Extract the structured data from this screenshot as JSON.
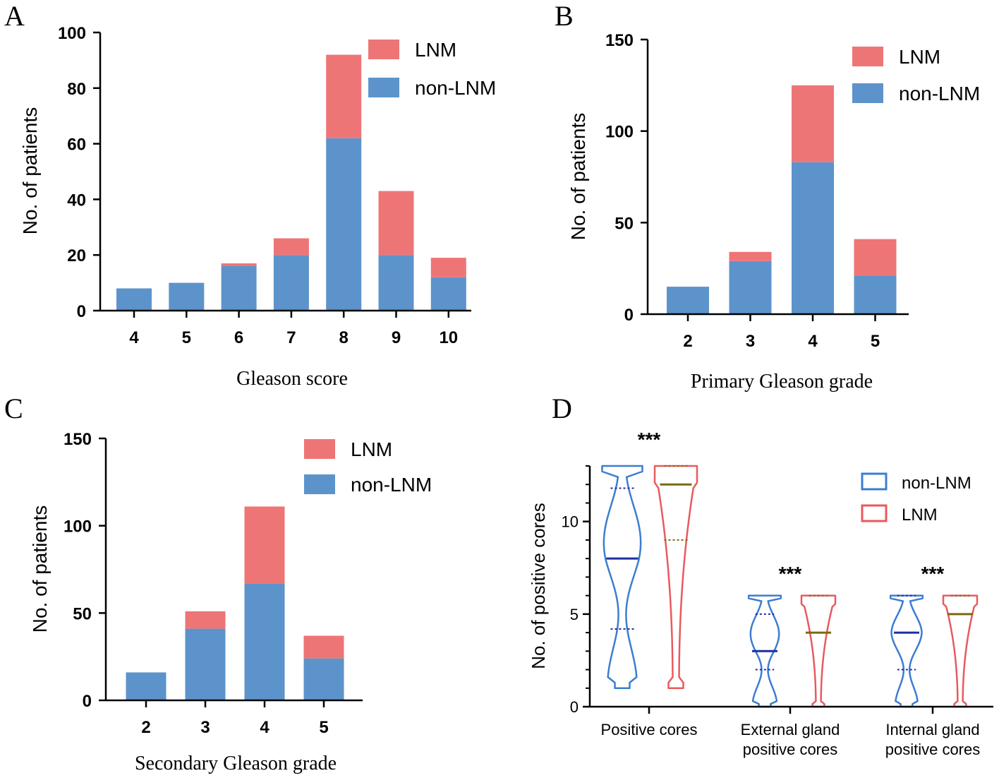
{
  "colors": {
    "lnm": "#ee7576",
    "non_lnm": "#5d93cb",
    "violin_blue": "#3d7dd0",
    "violin_red": "#e85a5e",
    "median_blue": "#1d2f9e",
    "median_red": "#7a6a10"
  },
  "chart_data": [
    {
      "panel": "A",
      "type": "bar",
      "stacked": true,
      "categories": [
        "4",
        "5",
        "6",
        "7",
        "8",
        "9",
        "10"
      ],
      "series": [
        {
          "name": "non-LNM",
          "values": [
            8,
            10,
            16,
            20,
            62,
            20,
            12
          ]
        },
        {
          "name": "LNM",
          "values": [
            0,
            0,
            1,
            6,
            30,
            23,
            7
          ]
        }
      ],
      "legend": [
        "LNM",
        "non-LNM"
      ],
      "xlabel": "Gleason score",
      "ylabel": "No. of patients",
      "ylim": [
        0,
        100
      ],
      "yticks": [
        "0",
        "20",
        "40",
        "60",
        "80",
        "100"
      ]
    },
    {
      "panel": "B",
      "type": "bar",
      "stacked": true,
      "categories": [
        "2",
        "3",
        "4",
        "5"
      ],
      "series": [
        {
          "name": "non-LNM",
          "values": [
            15,
            29,
            83,
            21
          ]
        },
        {
          "name": "LNM",
          "values": [
            0,
            5,
            42,
            20
          ]
        }
      ],
      "legend": [
        "LNM",
        "non-LNM"
      ],
      "xlabel": "Primary Gleason grade",
      "ylabel": "No. of patients",
      "ylim": [
        0,
        150
      ],
      "yticks": [
        "0",
        "50",
        "100",
        "150"
      ]
    },
    {
      "panel": "C",
      "type": "bar",
      "stacked": true,
      "categories": [
        "2",
        "3",
        "4",
        "5"
      ],
      "series": [
        {
          "name": "non-LNM",
          "values": [
            16,
            41,
            67,
            24
          ]
        },
        {
          "name": "LNM",
          "values": [
            0,
            10,
            44,
            13
          ]
        }
      ],
      "legend": [
        "LNM",
        "non-LNM"
      ],
      "xlabel": "Secondary Gleason grade",
      "ylabel": "No. of patients",
      "ylim": [
        0,
        150
      ],
      "yticks": [
        "0",
        "50",
        "100",
        "150"
      ]
    },
    {
      "panel": "D",
      "type": "violin",
      "categories": [
        {
          "lines": [
            "Positive cores"
          ],
          "significance": "***"
        },
        {
          "lines": [
            "External gland",
            "positive cores"
          ],
          "significance": "***"
        },
        {
          "lines": [
            "Internal gland",
            "positive cores"
          ],
          "significance": "***"
        }
      ],
      "series": [
        {
          "name": "non-LNM",
          "groups": [
            {
              "min": 1,
              "max": 13,
              "q1": 4.2,
              "median": 8,
              "q3": 11.8
            },
            {
              "min": 0,
              "max": 6,
              "q1": 2,
              "median": 3,
              "q3": 5
            },
            {
              "min": 0,
              "max": 6,
              "q1": 2,
              "median": 4,
              "q3": 6
            }
          ]
        },
        {
          "name": "LNM",
          "groups": [
            {
              "min": 1,
              "max": 13,
              "q1": 9,
              "median": 12,
              "q3": 13
            },
            {
              "min": 0,
              "max": 6,
              "q1": 4,
              "median": 4,
              "q3": 6
            },
            {
              "min": 0,
              "max": 6,
              "q1": 5,
              "median": 5,
              "q3": 6
            }
          ]
        }
      ],
      "legend": [
        "non-LNM",
        "LNM"
      ],
      "ylabel": "No. of positive cores",
      "ylim": [
        0,
        13
      ],
      "yticks": [
        "0",
        "5",
        "10"
      ]
    }
  ]
}
